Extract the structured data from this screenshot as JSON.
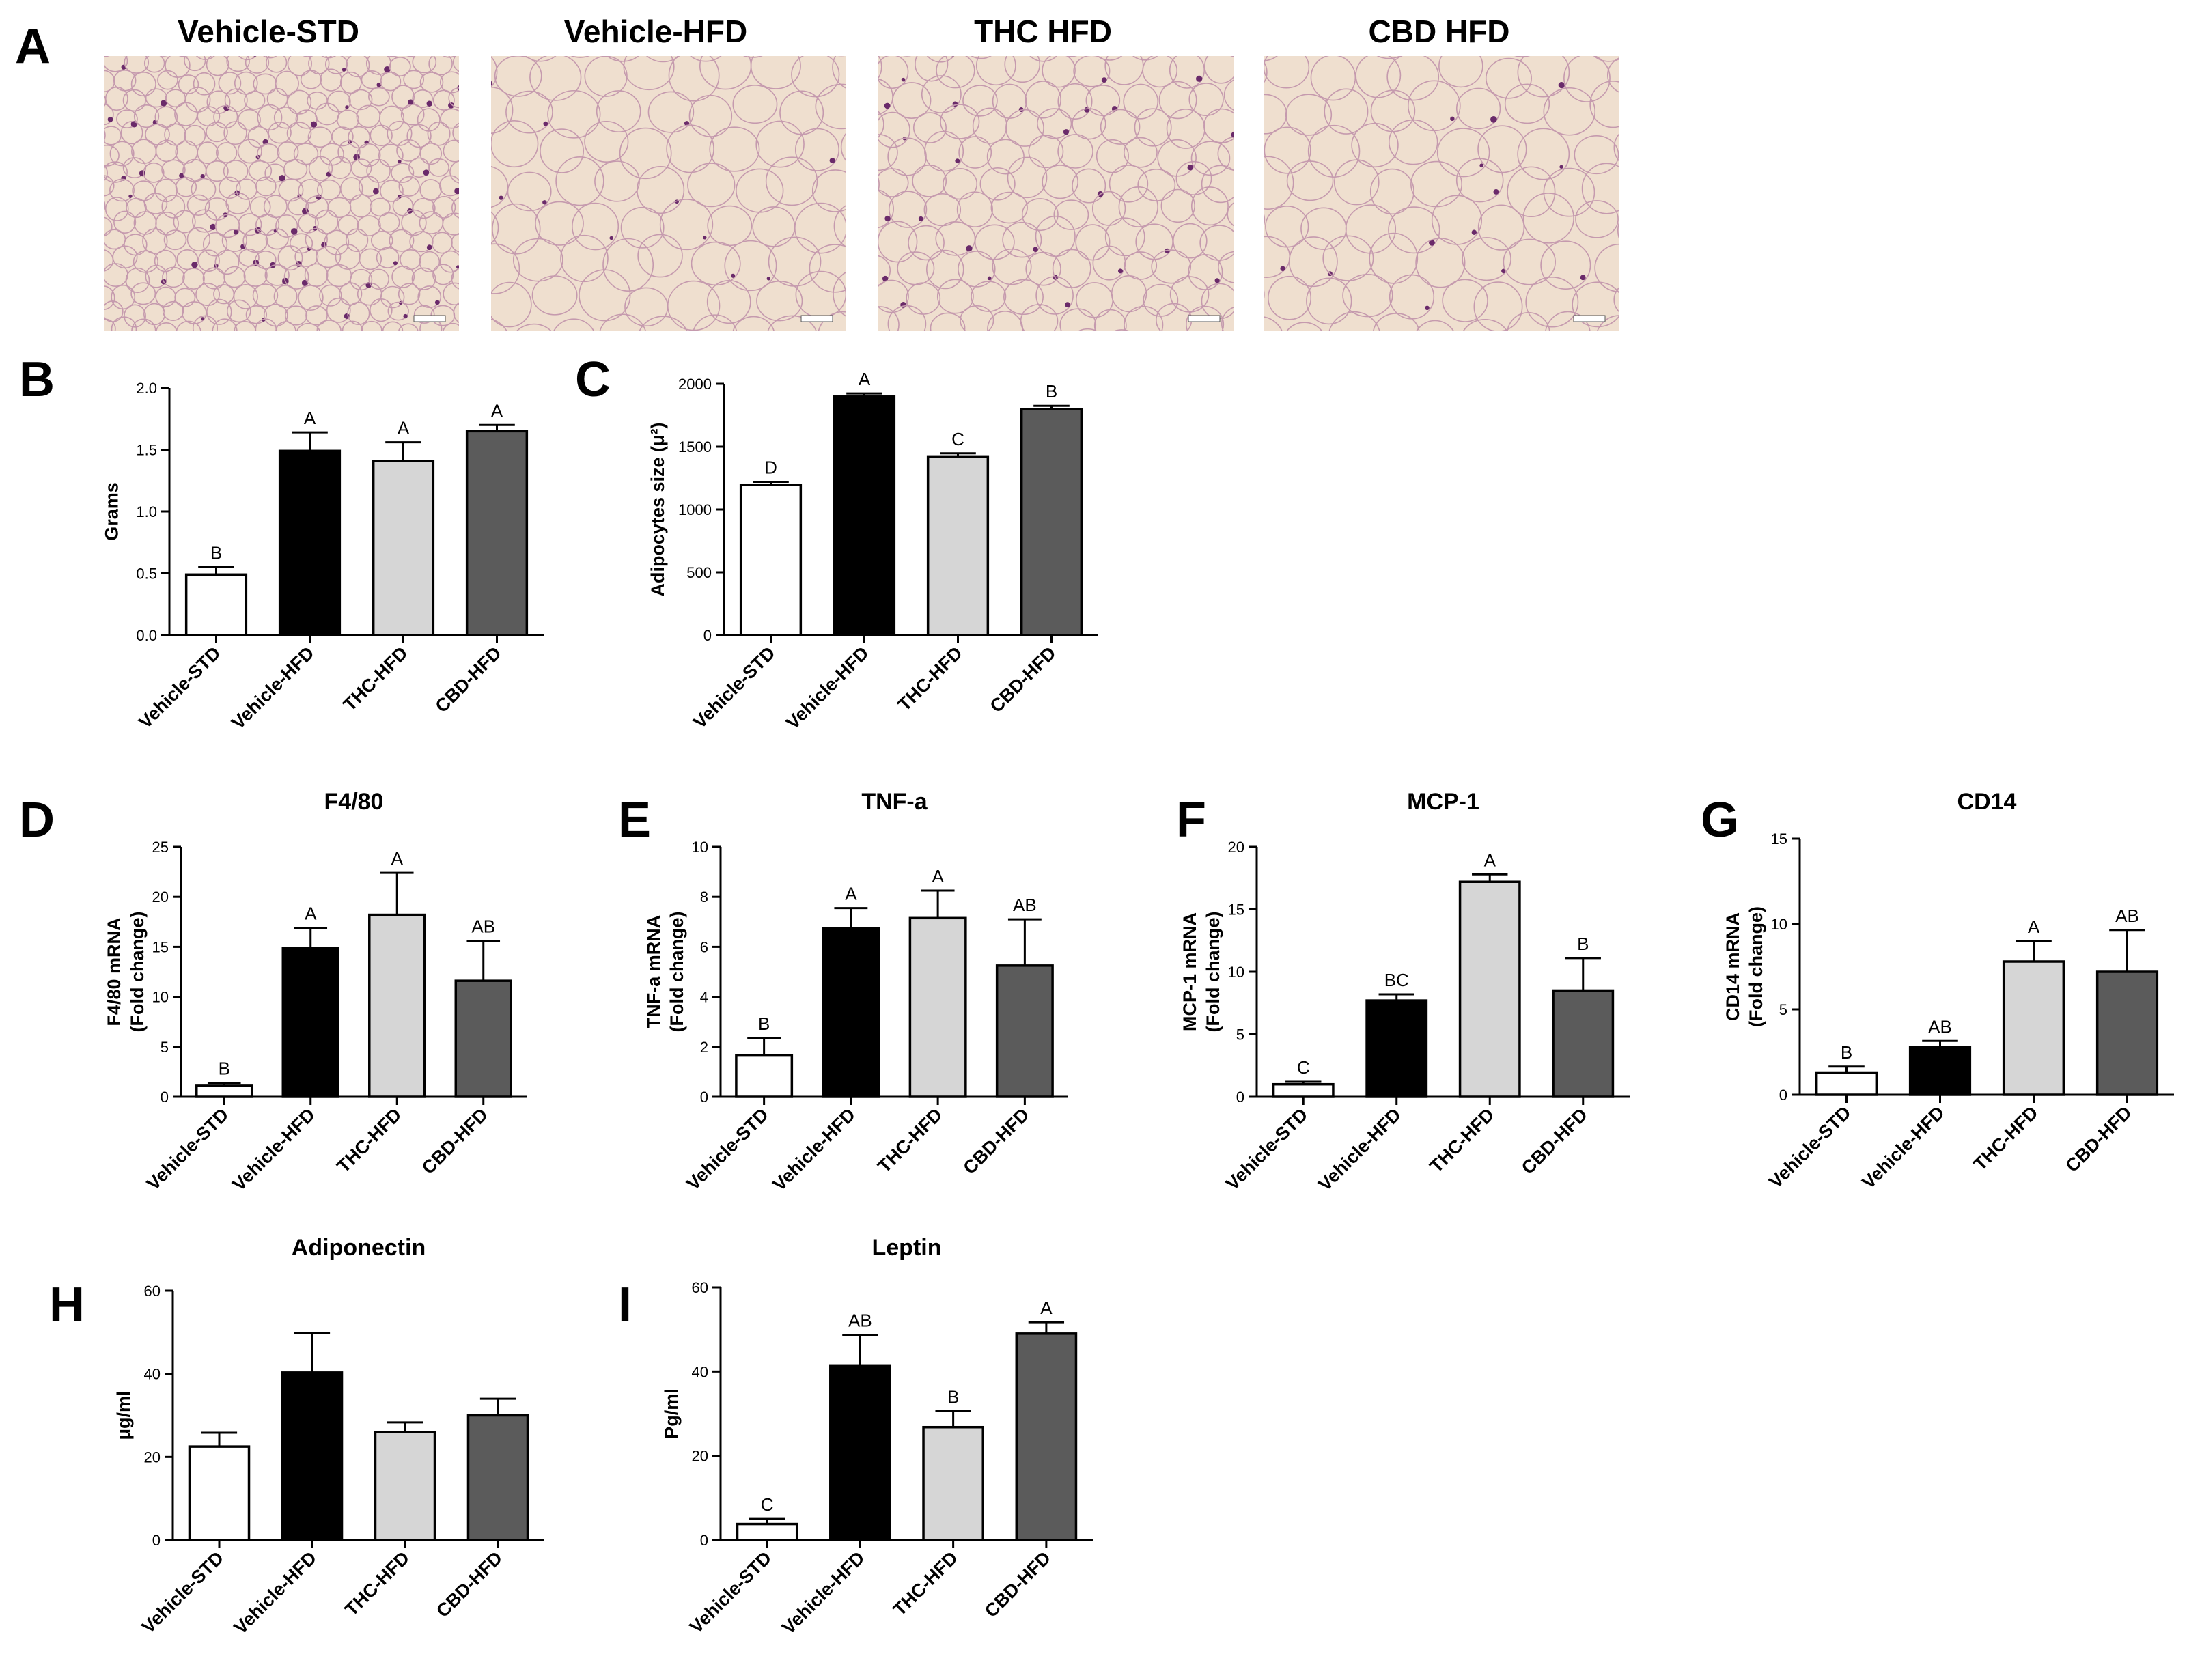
{
  "colors": {
    "Vehicle-STD": "#ffffff",
    "Vehicle-HFD": "#000000",
    "THC-HFD": "#d6d6d6",
    "CBD-HFD": "#5b5b5b",
    "tissue_background": "#efdfcf",
    "tissue_membrane": "#c59aae",
    "tissue_nuclei": "#6a2a6a"
  },
  "micrographs": {
    "panel_letter": "A",
    "panels": [
      {
        "title": "Vehicle-STD",
        "cell_size": "small"
      },
      {
        "title": "Vehicle-HFD",
        "cell_size": "large"
      },
      {
        "title": "THC HFD",
        "cell_size": "medium"
      },
      {
        "title": "CBD HFD",
        "cell_size": "large"
      }
    ]
  },
  "chart_data": [
    {
      "panel": "B",
      "type": "bar",
      "title": "",
      "ylabel": "Grams",
      "ylabel2": "",
      "ylim": [
        0,
        2.0
      ],
      "yticks": [
        "0.0",
        "0.5",
        "1.0",
        "1.5",
        "2.0"
      ],
      "categories": [
        "Vehicle-STD",
        "Vehicle-HFD",
        "THC-HFD",
        "CBD-HFD"
      ],
      "values": [
        0.49,
        1.49,
        1.41,
        1.65
      ],
      "errors": [
        0.06,
        0.15,
        0.15,
        0.05
      ],
      "significance": [
        "B",
        "A",
        "A",
        "A"
      ]
    },
    {
      "panel": "C",
      "type": "bar",
      "title": "",
      "ylabel": "Adipocytes size (μ²)",
      "ylabel2": "",
      "ylim": [
        0,
        2000
      ],
      "yticks": [
        "0",
        "500",
        "1000",
        "1500",
        "2000"
      ],
      "categories": [
        "Vehicle-STD",
        "Vehicle-HFD",
        "THC-HFD",
        "CBD-HFD"
      ],
      "values": [
        1195,
        1898,
        1422,
        1800
      ],
      "errors": [
        25,
        25,
        25,
        25
      ],
      "significance": [
        "D",
        "A",
        "C",
        "B"
      ]
    },
    {
      "panel": "D",
      "type": "bar",
      "title": "F4/80",
      "ylabel": "F4/80 mRNA",
      "ylabel2": "(Fold change)",
      "ylim": [
        0,
        25
      ],
      "yticks": [
        "0",
        "5",
        "10",
        "15",
        "20",
        "25"
      ],
      "categories": [
        "Vehicle-STD",
        "Vehicle-HFD",
        "THC-HFD",
        "CBD-HFD"
      ],
      "values": [
        1.1,
        14.9,
        18.2,
        11.6
      ],
      "errors": [
        0.3,
        2.0,
        4.2,
        4.0
      ],
      "significance": [
        "B",
        "A",
        "A",
        "AB"
      ]
    },
    {
      "panel": "E",
      "type": "bar",
      "title": "TNF-a",
      "ylabel": "TNF-a mRNA",
      "ylabel2": "(Fold change)",
      "ylim": [
        0,
        10
      ],
      "yticks": [
        "0",
        "2",
        "4",
        "6",
        "8",
        "10"
      ],
      "categories": [
        "Vehicle-STD",
        "Vehicle-HFD",
        "THC-HFD",
        "CBD-HFD"
      ],
      "values": [
        1.65,
        6.75,
        7.15,
        5.25
      ],
      "errors": [
        0.7,
        0.8,
        1.1,
        1.85
      ],
      "significance": [
        "B",
        "A",
        "A",
        "AB"
      ]
    },
    {
      "panel": "F",
      "type": "bar",
      "title": "MCP-1",
      "ylabel": "MCP-1 mRNA",
      "ylabel2": "(Fold change)",
      "ylim": [
        0,
        20
      ],
      "yticks": [
        "0",
        "5",
        "10",
        "15",
        "20"
      ],
      "categories": [
        "Vehicle-STD",
        "Vehicle-HFD",
        "THC-HFD",
        "CBD-HFD"
      ],
      "values": [
        1.0,
        7.7,
        17.2,
        8.5
      ],
      "errors": [
        0.2,
        0.5,
        0.6,
        2.6
      ],
      "significance": [
        "C",
        "BC",
        "A",
        "B"
      ]
    },
    {
      "panel": "G",
      "type": "bar",
      "title": "CD14",
      "ylabel": "CD14 mRNA",
      "ylabel2": "(Fold change)",
      "ylim": [
        0,
        15
      ],
      "yticks": [
        "0",
        "5",
        "10",
        "15"
      ],
      "categories": [
        "Vehicle-STD",
        "Vehicle-HFD",
        "THC-HFD",
        "CBD-HFD"
      ],
      "values": [
        1.3,
        2.8,
        7.8,
        7.2
      ],
      "errors": [
        0.35,
        0.35,
        1.2,
        2.45
      ],
      "significance": [
        "B",
        "AB",
        "A",
        "AB"
      ]
    },
    {
      "panel": "H",
      "type": "bar",
      "title": "Adiponectin",
      "ylabel": "μg/ml",
      "ylabel2": "",
      "ylim": [
        0,
        60
      ],
      "yticks": [
        "0",
        "20",
        "40",
        "60"
      ],
      "categories": [
        "Vehicle-STD",
        "Vehicle-HFD",
        "THC-HFD",
        "CBD-HFD"
      ],
      "values": [
        22.5,
        40.3,
        26.0,
        30.0
      ],
      "errors": [
        3.3,
        9.6,
        2.3,
        4.0
      ],
      "significance": [
        "",
        "",
        "",
        ""
      ]
    },
    {
      "panel": "I",
      "type": "bar",
      "title": "Leptin",
      "ylabel": "Pg/ml",
      "ylabel2": "",
      "ylim": [
        0,
        60
      ],
      "yticks": [
        "0",
        "20",
        "40",
        "60"
      ],
      "categories": [
        "Vehicle-STD",
        "Vehicle-HFD",
        "THC-HFD",
        "CBD-HFD"
      ],
      "values": [
        3.8,
        41.3,
        26.8,
        49.0
      ],
      "errors": [
        1.2,
        7.4,
        3.8,
        2.7
      ],
      "significance": [
        "C",
        "AB",
        "B",
        "A"
      ]
    }
  ]
}
